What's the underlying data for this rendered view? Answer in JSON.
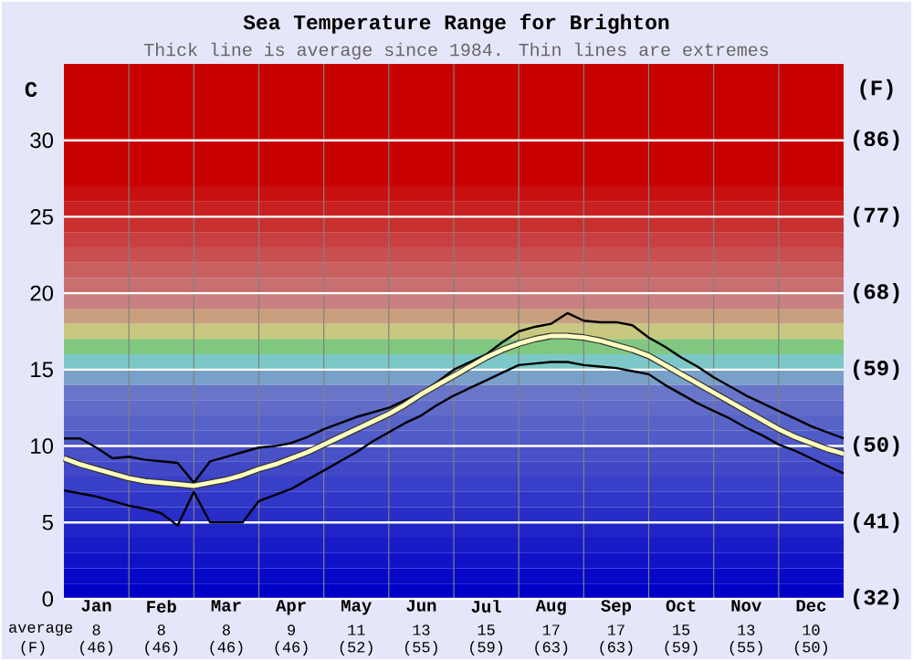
{
  "chart_data": {
    "type": "line",
    "title": "Sea Temperature Range for Brighton",
    "subtitle": "Thick line is average since 1984. Thin lines are extremes",
    "ylabel": "C",
    "y2label": "(F)",
    "categories": [
      null,
      null,
      "Jan",
      null,
      null,
      null,
      "Feb",
      null,
      null,
      null,
      "Mar",
      null,
      null,
      null,
      "Apr",
      null,
      null,
      null,
      "May",
      null,
      null,
      null,
      "Jun",
      null,
      null,
      null,
      "Jul",
      null,
      null,
      null,
      "Aug",
      null,
      null,
      null,
      "Sep",
      null,
      null,
      null,
      "Oct",
      null,
      null,
      null,
      "Nov",
      null,
      null,
      null,
      "Dec",
      null,
      null
    ],
    "ylim": [
      0,
      35
    ],
    "yticks": [
      0,
      5,
      10,
      15,
      20,
      25,
      30
    ],
    "y2lim": [
      32,
      95
    ],
    "y2ticks": [
      {
        "value": 32,
        "label": "(32)"
      },
      {
        "value": 41,
        "label": "(41)"
      },
      {
        "value": 50,
        "label": "(50)"
      },
      {
        "value": 59,
        "label": "(59)"
      },
      {
        "value": 68,
        "label": "(68)"
      },
      {
        "value": 77,
        "label": "(77)"
      },
      {
        "value": 86,
        "label": "(86)"
      }
    ],
    "grid": true,
    "marker": "none",
    "series": [
      {
        "color": "#000000",
        "values": [
          10.5,
          10.5,
          9.9,
          9.2,
          9.3,
          9.1,
          9.0,
          8.9,
          7.6,
          9.0,
          9.3,
          9.6,
          9.9,
          10.0,
          10.2,
          10.6,
          11.1,
          11.5,
          11.9,
          12.2,
          12.5,
          13.0,
          13.5,
          14.2,
          15.0,
          15.5,
          16.0,
          16.8,
          17.5,
          17.8,
          18.0,
          18.7,
          18.2,
          18.1,
          18.1,
          17.9,
          17.1,
          16.5,
          15.8,
          15.2,
          14.5,
          13.9,
          13.3,
          12.8,
          12.3,
          11.8,
          11.3,
          10.9,
          10.5
        ]
      },
      {
        "color": "#000000",
        "values": [
          7.1,
          6.9,
          6.7,
          6.4,
          6.1,
          5.9,
          5.6,
          4.8,
          7.0,
          5.0,
          5.0,
          5.0,
          6.4,
          6.8,
          7.2,
          7.8,
          8.4,
          9.0,
          9.6,
          10.3,
          10.9,
          11.5,
          12.0,
          12.7,
          13.3,
          13.8,
          14.3,
          14.8,
          15.3,
          15.4,
          15.5,
          15.5,
          15.3,
          15.2,
          15.1,
          14.9,
          14.7,
          14.0,
          13.4,
          12.8,
          12.3,
          11.8,
          11.2,
          10.7,
          10.1,
          9.7,
          9.2,
          8.7,
          8.2
        ]
      },
      {
        "color": "#ffffc0",
        "values": [
          9.2,
          8.8,
          8.5,
          8.2,
          7.9,
          7.7,
          7.6,
          7.5,
          7.4,
          7.6,
          7.8,
          8.1,
          8.5,
          8.8,
          9.2,
          9.6,
          10.1,
          10.6,
          11.1,
          11.6,
          12.1,
          12.7,
          13.4,
          14.0,
          14.6,
          15.2,
          15.8,
          16.3,
          16.7,
          17.0,
          17.2,
          17.2,
          17.1,
          16.9,
          16.6,
          16.3,
          15.9,
          15.3,
          14.7,
          14.1,
          13.5,
          12.9,
          12.3,
          11.7,
          11.1,
          10.6,
          10.2,
          9.8,
          9.5
        ]
      }
    ],
    "bands": [
      {
        "axis": "y",
        "from": 0,
        "to": 1,
        "color": "#0000c8"
      },
      {
        "axis": "y",
        "from": 1,
        "to": 2,
        "color": "#0809c8"
      },
      {
        "axis": "y",
        "from": 2,
        "to": 3,
        "color": "#1012c8"
      },
      {
        "axis": "y",
        "from": 3,
        "to": 4,
        "color": "#181bc8"
      },
      {
        "axis": "y",
        "from": 4,
        "to": 5,
        "color": "#2024c8"
      },
      {
        "axis": "y",
        "from": 5,
        "to": 6,
        "color": "#282dc8"
      },
      {
        "axis": "y",
        "from": 6,
        "to": 7,
        "color": "#3036c8"
      },
      {
        "axis": "y",
        "from": 7,
        "to": 8,
        "color": "#383fc8"
      },
      {
        "axis": "y",
        "from": 8,
        "to": 9,
        "color": "#4048c8"
      },
      {
        "axis": "y",
        "from": 9,
        "to": 10,
        "color": "#4851c8"
      },
      {
        "axis": "y",
        "from": 10,
        "to": 11,
        "color": "#505ac8"
      },
      {
        "axis": "y",
        "from": 11,
        "to": 12,
        "color": "#5863c8"
      },
      {
        "axis": "y",
        "from": 12,
        "to": 13,
        "color": "#606cc8"
      },
      {
        "axis": "y",
        "from": 13,
        "to": 14,
        "color": "#6875c8"
      },
      {
        "axis": "y",
        "from": 14,
        "to": 15,
        "color": "#78a0c8"
      },
      {
        "axis": "y",
        "from": 15,
        "to": 16,
        "color": "#7cc8c8"
      },
      {
        "axis": "y",
        "from": 16,
        "to": 17,
        "color": "#80c880"
      },
      {
        "axis": "y",
        "from": 17,
        "to": 18,
        "color": "#c8c880"
      },
      {
        "axis": "y",
        "from": 18,
        "to": 19,
        "color": "#c8a080"
      },
      {
        "axis": "y",
        "from": 19,
        "to": 20,
        "color": "#c88080"
      },
      {
        "axis": "y",
        "from": 20,
        "to": 21,
        "color": "#c87070"
      },
      {
        "axis": "y",
        "from": 21,
        "to": 22,
        "color": "#c86060"
      },
      {
        "axis": "y",
        "from": 22,
        "to": 23,
        "color": "#c85050"
      },
      {
        "axis": "y",
        "from": 23,
        "to": 24,
        "color": "#c84040"
      },
      {
        "axis": "y",
        "from": 24,
        "to": 25,
        "color": "#c83030"
      },
      {
        "axis": "y",
        "from": 25,
        "to": 26,
        "color": "#c82020"
      },
      {
        "axis": "y",
        "from": 26,
        "to": 27,
        "color": "#c81010"
      },
      {
        "axis": "y",
        "from": 27,
        "to": 35,
        "color": "#c80000"
      }
    ],
    "annotations": [
      "average",
      "(F)",
      "8",
      "8",
      "8",
      "9",
      "11",
      "13",
      "15",
      "17",
      "17",
      "15",
      "13",
      "10",
      "(46)",
      "(46)",
      "(46)",
      "(46)",
      "(52)",
      "(55)",
      "(59)",
      "(63)",
      "(63)",
      "(59)",
      "(55)",
      "(50)"
    ]
  }
}
